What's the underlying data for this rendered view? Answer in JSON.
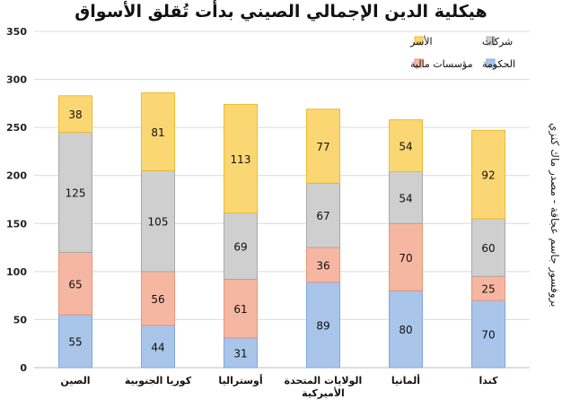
{
  "chart_data": {
    "type": "bar",
    "stacked": true,
    "title": "هيكلية الدين الإجمالي الصيني بدأت تُقلق الأسواق",
    "source": "بروفسور جاسم عجاقة - مصدر ماك كنزي",
    "categories": [
      "الصين",
      "كوريا الجنوبية",
      "أوستراليا",
      "الولايات المتحدة الأميركية",
      "ألمانيا",
      "كندا"
    ],
    "series": [
      {
        "name": "الحكومة",
        "color": "#a9c5ea",
        "values": [
          55,
          44,
          31,
          89,
          80,
          70
        ]
      },
      {
        "name": "مؤسسات مالية",
        "color": "#f6b7a2",
        "values": [
          65,
          56,
          61,
          36,
          70,
          25
        ]
      },
      {
        "name": "شركات",
        "color": "#cfcfcf",
        "values": [
          125,
          105,
          69,
          67,
          54,
          60
        ]
      },
      {
        "name": "الأسر",
        "color": "#fbd774",
        "values": [
          38,
          81,
          113,
          77,
          54,
          92
        ]
      }
    ],
    "ylim": [
      0,
      350
    ],
    "yticks": [
      0,
      50,
      100,
      150,
      200,
      250,
      300,
      350
    ],
    "grid": true,
    "legend": "top-right"
  },
  "colors": {
    "government_border": "#7fa6d9",
    "financial_border": "#e99477",
    "corporate_border": "#a8a8a8",
    "households_border": "#eebb2e"
  }
}
